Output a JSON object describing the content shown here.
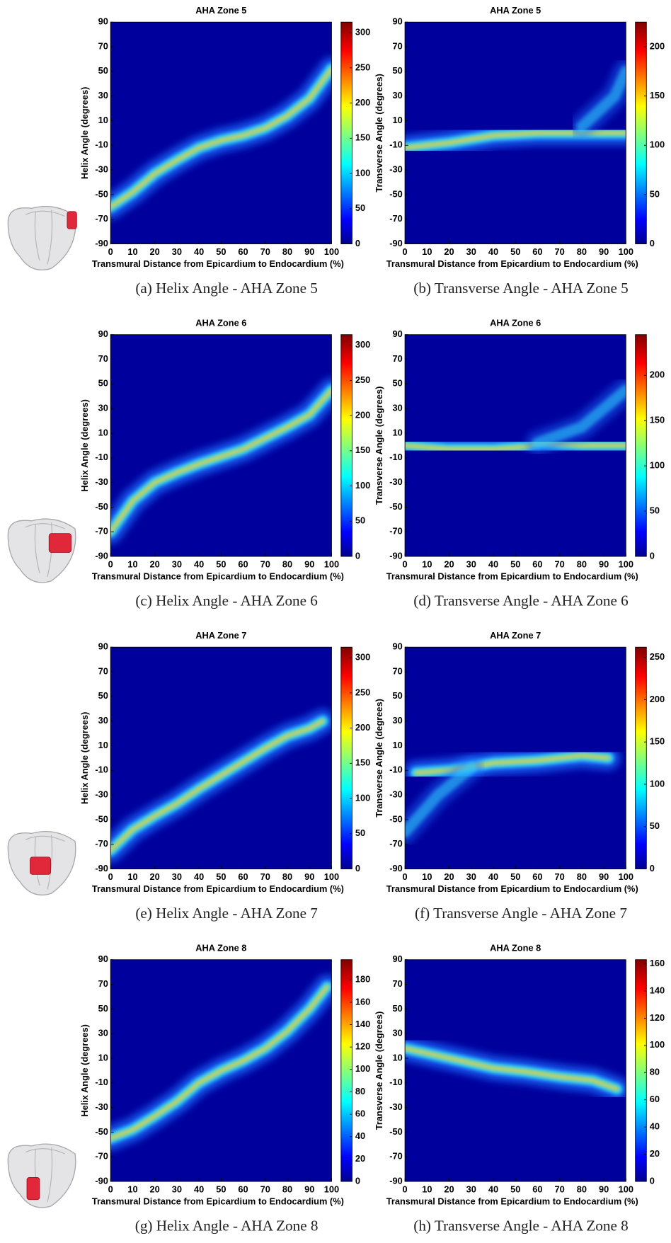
{
  "chart_data": [
    {
      "type": "heatmap",
      "title": "AHA Zone 5",
      "xlabel": "Transmural Distance from Epicardium to Endocardium (%)",
      "ylabel": "Helix Angle (degrees)",
      "caption": "(a) Helix Angle - AHA Zone 5",
      "xlim": [
        0,
        100
      ],
      "xticks": [
        0,
        10,
        20,
        30,
        40,
        50,
        60,
        70,
        80,
        90,
        100
      ],
      "ylim": [
        -90,
        90
      ],
      "yticks": [
        -90,
        -70,
        -50,
        -30,
        -10,
        10,
        30,
        50,
        70,
        90
      ],
      "colorbar": {
        "clim": [
          0,
          315
        ],
        "ticks": [
          0,
          50,
          100,
          150,
          200,
          250,
          300
        ]
      }
    },
    {
      "type": "heatmap",
      "title": "AHA Zone 5",
      "xlabel": "Transmural Distance from Epicardium to Endocardium (%)",
      "ylabel": "Transverse Angle (degrees)",
      "caption": "(b) Transverse Angle - AHA Zone 5",
      "xlim": [
        0,
        100
      ],
      "xticks": [
        0,
        10,
        20,
        30,
        40,
        50,
        60,
        70,
        80,
        90,
        100
      ],
      "ylim": [
        -90,
        90
      ],
      "yticks": [
        -90,
        -70,
        -50,
        -30,
        -10,
        10,
        30,
        50,
        70,
        90
      ],
      "colorbar": {
        "clim": [
          0,
          225
        ],
        "ticks": [
          0,
          50,
          100,
          150,
          200
        ]
      }
    },
    {
      "type": "heatmap",
      "title": "AHA Zone 6",
      "xlabel": "Transmural Distance from Epicardium to Endocardium (%)",
      "ylabel": "Helix Angle (degrees)",
      "caption": "(c) Helix Angle - AHA Zone 6",
      "xlim": [
        0,
        100
      ],
      "xticks": [
        0,
        10,
        20,
        30,
        40,
        50,
        60,
        70,
        80,
        90,
        100
      ],
      "ylim": [
        -90,
        90
      ],
      "yticks": [
        -90,
        -70,
        -50,
        -30,
        -10,
        10,
        30,
        50,
        70,
        90
      ],
      "colorbar": {
        "clim": [
          0,
          315
        ],
        "ticks": [
          0,
          50,
          100,
          150,
          200,
          250,
          300
        ]
      }
    },
    {
      "type": "heatmap",
      "title": "AHA Zone 6",
      "xlabel": "Transmural Distance from Epicardium to Endocardium (%)",
      "ylabel": "Transverse Angle (degrees)",
      "caption": "(d) Transverse Angle - AHA Zone 6",
      "xlim": [
        0,
        100
      ],
      "xticks": [
        0,
        10,
        20,
        30,
        40,
        50,
        60,
        70,
        80,
        90,
        100
      ],
      "ylim": [
        -90,
        90
      ],
      "yticks": [
        -90,
        -70,
        -50,
        -30,
        -10,
        10,
        30,
        50,
        70,
        90
      ],
      "colorbar": {
        "clim": [
          0,
          245
        ],
        "ticks": [
          0,
          50,
          100,
          150,
          200
        ]
      }
    },
    {
      "type": "heatmap",
      "title": "AHA Zone 7",
      "xlabel": "Transmural Distance from Epicardium to Endocardium (%)",
      "ylabel": "Helix Angle (degrees)",
      "caption": "(e) Helix Angle - AHA Zone 7",
      "xlim": [
        0,
        100
      ],
      "xticks": [
        0,
        10,
        20,
        30,
        40,
        50,
        60,
        70,
        80,
        90,
        100
      ],
      "ylim": [
        -90,
        90
      ],
      "yticks": [
        -90,
        -70,
        -50,
        -30,
        -10,
        10,
        30,
        50,
        70,
        90
      ],
      "colorbar": {
        "clim": [
          0,
          315
        ],
        "ticks": [
          0,
          50,
          100,
          150,
          200,
          250,
          300
        ]
      }
    },
    {
      "type": "heatmap",
      "title": "AHA Zone 7",
      "xlabel": "Transmural Distance from Epicardium to Endocardium (%)",
      "ylabel": "Transverse Angle (degrees)",
      "caption": "(f) Transverse Angle - AHA Zone 7",
      "xlim": [
        0,
        100
      ],
      "xticks": [
        0,
        10,
        20,
        30,
        40,
        50,
        60,
        70,
        80,
        90,
        100
      ],
      "ylim": [
        -90,
        90
      ],
      "yticks": [
        -90,
        -70,
        -50,
        -30,
        -10,
        10,
        30,
        50,
        70,
        90
      ],
      "colorbar": {
        "clim": [
          0,
          262
        ],
        "ticks": [
          0,
          50,
          100,
          150,
          200,
          250
        ]
      }
    },
    {
      "type": "heatmap",
      "title": "AHA Zone 8",
      "xlabel": "Transmural Distance from Epicardium to Endocardium (%)",
      "ylabel": "Helix Angle (degrees)",
      "caption": "(g) Helix Angle - AHA Zone 8",
      "xlim": [
        0,
        100
      ],
      "xticks": [
        0,
        10,
        20,
        30,
        40,
        50,
        60,
        70,
        80,
        90,
        100
      ],
      "ylim": [
        -90,
        90
      ],
      "yticks": [
        -90,
        -70,
        -50,
        -30,
        -10,
        10,
        30,
        50,
        70,
        90
      ],
      "colorbar": {
        "clim": [
          0,
          198
        ],
        "ticks": [
          0,
          20,
          40,
          60,
          80,
          100,
          120,
          140,
          160,
          180
        ]
      }
    },
    {
      "type": "heatmap",
      "title": "AHA Zone 8",
      "xlabel": "Transmural Distance from Epicardium to Endocardium (%)",
      "ylabel": "Transverse Angle (degrees)",
      "caption": "(h) Transverse Angle - AHA Zone 8",
      "xlim": [
        0,
        100
      ],
      "xticks": [
        0,
        10,
        20,
        30,
        40,
        50,
        60,
        70,
        80,
        90,
        100
      ],
      "ylim": [
        -90,
        90
      ],
      "yticks": [
        -90,
        -70,
        -50,
        -30,
        -10,
        10,
        30,
        50,
        70,
        90
      ],
      "colorbar": {
        "clim": [
          0,
          163
        ],
        "ticks": [
          0,
          20,
          40,
          60,
          80,
          100,
          120,
          140,
          160
        ]
      }
    }
  ]
}
